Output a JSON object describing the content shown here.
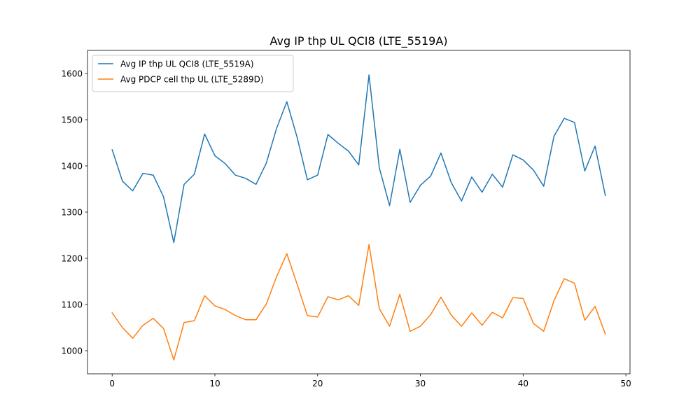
{
  "chart_data": {
    "type": "line",
    "title": "Avg IP thp UL QCI8 (LTE_5519A)",
    "xlabel": "",
    "ylabel": "",
    "xlim": [
      -2.4,
      50.4
    ],
    "ylim": [
      950,
      1650
    ],
    "xticks": [
      0,
      10,
      20,
      30,
      40,
      50
    ],
    "yticks": [
      1000,
      1100,
      1200,
      1300,
      1400,
      1500,
      1600
    ],
    "grid": false,
    "legend_position": "top-left",
    "x": [
      0,
      1,
      2,
      3,
      4,
      5,
      6,
      7,
      8,
      9,
      10,
      11,
      12,
      13,
      14,
      15,
      16,
      17,
      18,
      19,
      20,
      21,
      22,
      23,
      24,
      25,
      26,
      27,
      28,
      29,
      30,
      31,
      32,
      33,
      34,
      35,
      36,
      37,
      38,
      39,
      40,
      41,
      42,
      43,
      44,
      45,
      46,
      47,
      48
    ],
    "series": [
      {
        "name": "Avg IP thp UL QCI8 (LTE_5519A)",
        "color": "#1f77b4",
        "values": [
          1435,
          1367,
          1346,
          1384,
          1380,
          1333,
          1234,
          1360,
          1382,
          1469,
          1422,
          1405,
          1380,
          1373,
          1360,
          1406,
          1481,
          1539,
          1462,
          1370,
          1380,
          1468,
          1449,
          1432,
          1402,
          1597,
          1396,
          1314,
          1436,
          1321,
          1358,
          1378,
          1428,
          1364,
          1324,
          1376,
          1343,
          1382,
          1354,
          1424,
          1413,
          1391,
          1356,
          1464,
          1503,
          1494,
          1389,
          1443,
          1336
        ]
      },
      {
        "name": "Avg PDCP cell thp UL (LTE_5289D)",
        "color": "#ff7f0e",
        "values": [
          1082,
          1050,
          1027,
          1055,
          1070,
          1048,
          980,
          1061,
          1065,
          1119,
          1097,
          1089,
          1076,
          1067,
          1067,
          1101,
          1160,
          1210,
          1144,
          1076,
          1073,
          1117,
          1110,
          1119,
          1098,
          1230,
          1091,
          1053,
          1122,
          1042,
          1053,
          1078,
          1116,
          1077,
          1053,
          1082,
          1055,
          1083,
          1071,
          1115,
          1113,
          1059,
          1042,
          1108,
          1156,
          1146,
          1066,
          1096,
          1036
        ]
      }
    ]
  }
}
